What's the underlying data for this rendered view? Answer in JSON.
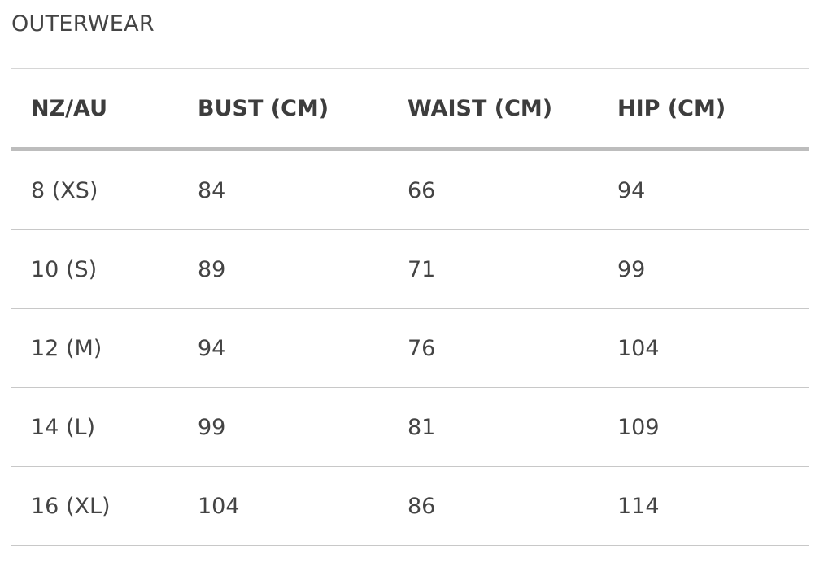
{
  "title": "OUTERWEAR",
  "headers": [
    "NZ/AU",
    "BUST (CM)",
    "WAIST (CM)",
    "HIP (CM)"
  ],
  "rows": [
    [
      "8 (XS)",
      "84",
      "66",
      "94"
    ],
    [
      "10 (S)",
      "89",
      "71",
      "99"
    ],
    [
      "12 (M)",
      "94",
      "76",
      "104"
    ],
    [
      "14 (L)",
      "99",
      "81",
      "109"
    ],
    [
      "16 (XL)",
      "104",
      "86",
      "114"
    ]
  ]
}
